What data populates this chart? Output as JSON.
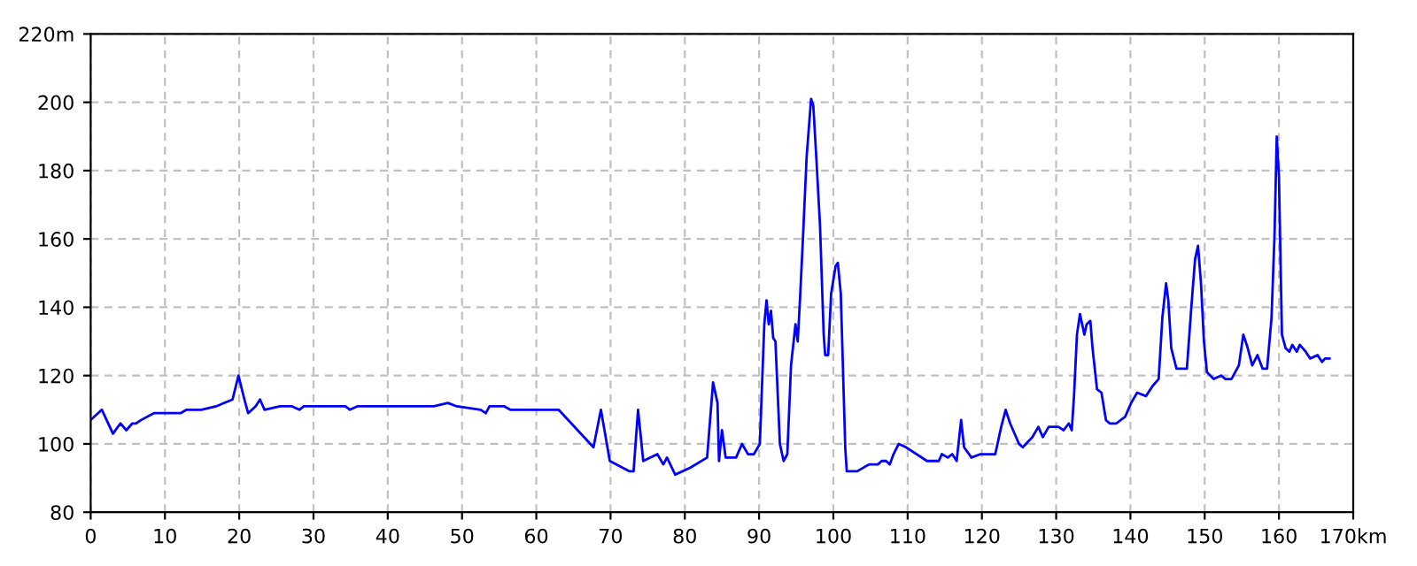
{
  "chart_data": {
    "type": "line",
    "grid": true,
    "line_style": "solid",
    "marker": "none",
    "xlim": [
      0,
      170
    ],
    "ylim": [
      80,
      220
    ],
    "xticks": [
      0,
      10,
      20,
      30,
      40,
      50,
      60,
      70,
      80,
      90,
      100,
      110,
      120,
      130,
      140,
      150,
      160,
      {
        "value": 170,
        "label": "170km"
      }
    ],
    "yticks": [
      80,
      100,
      120,
      140,
      160,
      180,
      200,
      {
        "value": 220,
        "label": "220m"
      }
    ],
    "series": [
      {
        "color": "#0000ff",
        "x": [
          0,
          1.5,
          3,
          4,
          4.8,
          5.6,
          6.1,
          6.8,
          8.5,
          12.1,
          12.9,
          14.9,
          16.9,
          18,
          19.1,
          19.9,
          20.7,
          21.2,
          22.2,
          22.8,
          23.4,
          25.5,
          27.1,
          28.1,
          28.7,
          34.3,
          34.9,
          35.9,
          40.6,
          41.4,
          46.2,
          48.1,
          49.3,
          52.5,
          53.2,
          53.7,
          55.7,
          56.5,
          59.2,
          62,
          63,
          67.7,
          68.7,
          69.9,
          72.5,
          73.1,
          73.7,
          74.4,
          76.3,
          77.1,
          77.6,
          78.7,
          80.7,
          83,
          83.8,
          84.4,
          84.6,
          85,
          85.5,
          86.9,
          87.7,
          88.5,
          89.3,
          90.1,
          90.7,
          91,
          91.3,
          91.6,
          91.9,
          92.2,
          92.8,
          93.3,
          93.8,
          94.3,
          94.9,
          95.2,
          95.5,
          95.9,
          96.4,
          97,
          97.3,
          97.7,
          98.2,
          98.7,
          98.9,
          99.3,
          99.7,
          100.3,
          100.6,
          101,
          101.6,
          101.8,
          103.2,
          104.8,
          106,
          106.5,
          107.1,
          107.6,
          108.1,
          108.8,
          109.8,
          112.6,
          114.2,
          114.6,
          115.4,
          116,
          116.6,
          117.2,
          117.6,
          118.6,
          119.8,
          121.8,
          122.6,
          123.2,
          123.8,
          125,
          125.5,
          126.8,
          127.6,
          128.2,
          129,
          130.3,
          131,
          131.7,
          132.1,
          132.4,
          132.8,
          133.2,
          133.8,
          134.1,
          134.6,
          134.9,
          135.5,
          136.1,
          136.7,
          137.2,
          138.1,
          139.3,
          140.1,
          140.9,
          142.1,
          143,
          143.8,
          144.3,
          144.8,
          145.1,
          145.5,
          146.2,
          147.6,
          148.2,
          148.7,
          149.1,
          149.5,
          149.9,
          150.3,
          151.2,
          152.2,
          152.8,
          153.6,
          154.6,
          155.2,
          155.8,
          156.4,
          157.1,
          157.8,
          158.4,
          159,
          159.4,
          159.7,
          160,
          160.4,
          160.9,
          161.4,
          161.8,
          162.4,
          162.8,
          163.6,
          164.2,
          165.2,
          165.8,
          166.2,
          166.8
        ],
        "values": [
          107,
          110,
          103,
          106,
          104,
          106,
          106,
          107,
          109,
          109,
          110,
          110,
          111,
          112,
          113,
          120,
          113,
          109,
          111,
          113,
          110,
          111,
          111,
          110,
          111,
          111,
          110,
          111,
          111,
          111,
          111,
          112,
          111,
          110,
          109,
          111,
          111,
          110,
          110,
          110,
          110,
          99,
          110,
          95,
          92,
          92,
          110,
          95,
          97,
          94,
          96,
          91,
          93,
          96,
          118,
          112,
          95,
          104,
          96,
          96,
          100,
          97,
          97,
          100,
          135,
          142,
          135,
          139,
          131,
          130,
          100,
          95,
          97,
          123,
          135,
          130,
          142,
          160,
          184,
          201,
          199,
          184,
          164,
          132,
          126,
          126,
          144,
          152,
          153,
          144,
          99,
          92,
          92,
          94,
          94,
          95,
          95,
          94,
          97,
          100,
          99,
          95,
          95,
          97,
          96,
          97,
          95,
          107,
          99,
          96,
          97,
          97,
          105,
          110,
          106,
          100,
          99,
          102,
          105,
          102,
          105,
          105,
          104,
          106,
          104,
          114,
          132,
          138,
          132,
          135,
          136,
          128,
          116,
          115,
          107,
          106,
          106,
          108,
          112,
          115,
          114,
          117,
          119,
          137,
          147,
          142,
          128,
          122,
          122,
          140,
          154,
          158,
          147,
          130,
          121,
          119,
          120,
          119,
          119,
          123,
          132,
          128,
          123,
          126,
          122,
          122,
          137,
          161,
          190,
          178,
          132,
          128,
          127,
          129,
          127,
          129,
          127,
          125,
          126,
          124,
          125,
          125
        ]
      }
    ]
  }
}
